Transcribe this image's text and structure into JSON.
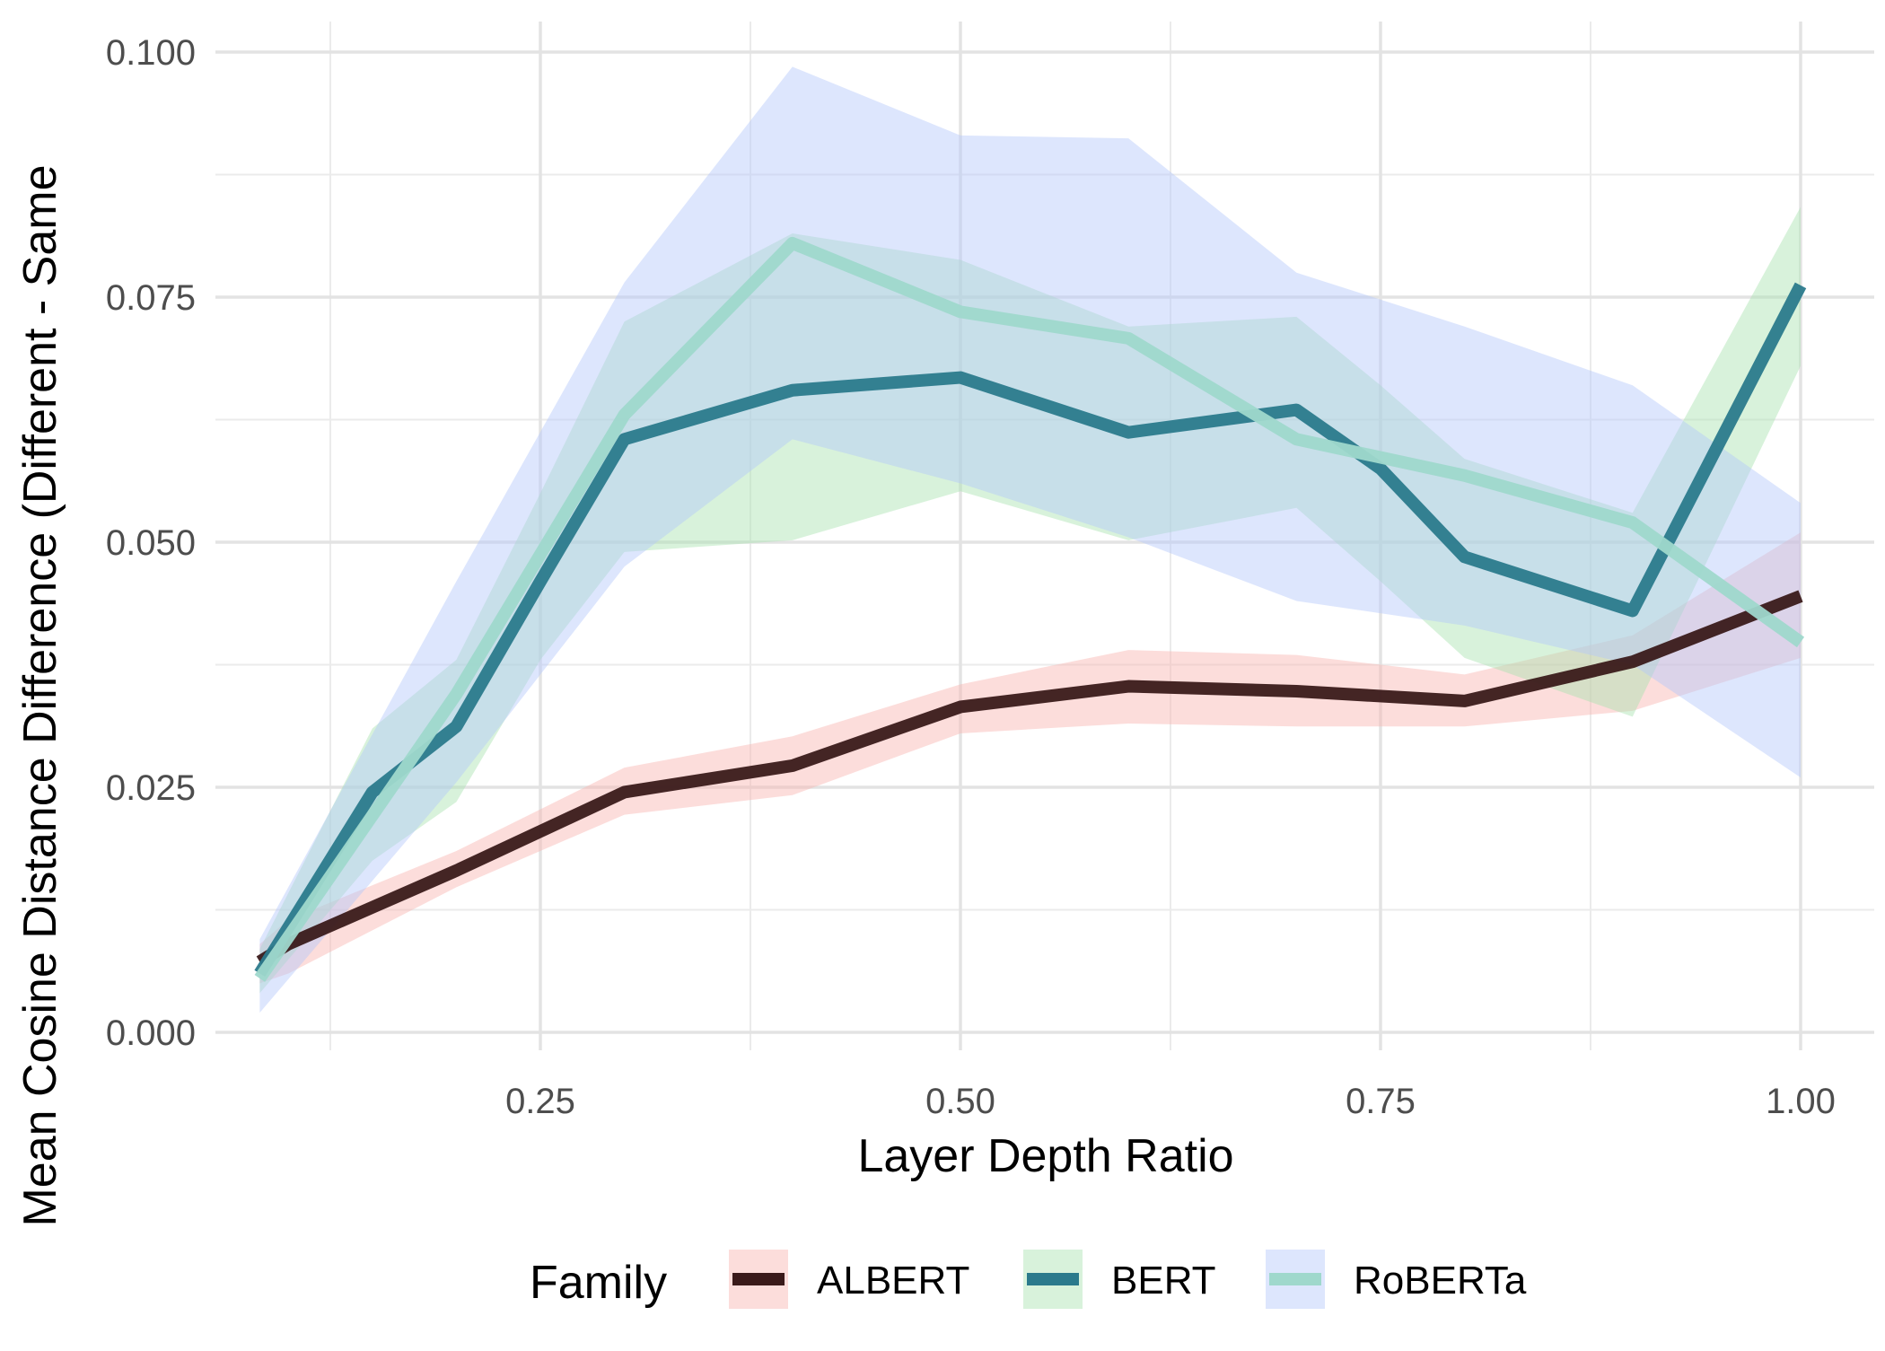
{
  "chart_data": {
    "type": "line",
    "xlabel": "Layer Depth Ratio",
    "ylabel": "Mean Cosine Distance Difference (Different - Same",
    "xlim": [
      0.03,
      1.04
    ],
    "ylim": [
      -0.003,
      0.103
    ],
    "xticks": [
      0.25,
      0.5,
      0.75,
      1.0
    ],
    "xtick_labels": [
      "0.25",
      "0.50",
      "0.75",
      "1.00"
    ],
    "yticks": [
      0.0,
      0.025,
      0.05,
      0.075,
      0.1
    ],
    "ytick_labels": [
      "0.000",
      "0.025",
      "0.050",
      "0.075",
      "0.100"
    ],
    "grid": true,
    "legend_position": "bottom",
    "legend_title": "Family",
    "series": [
      {
        "name": "ALBERT",
        "line_color": "#3a1a1a",
        "band_color": "#f8b4b0",
        "x": [
          0.083,
          0.1,
          0.2,
          0.3,
          0.4,
          0.5,
          0.6,
          0.7,
          0.8,
          0.9,
          1.0
        ],
        "y": [
          0.0072,
          0.009,
          0.0165,
          0.0245,
          0.0272,
          0.0332,
          0.0353,
          0.0348,
          0.0338,
          0.0378,
          0.0445
        ],
        "lower": [
          0.005,
          0.006,
          0.0148,
          0.0222,
          0.0242,
          0.0305,
          0.0315,
          0.0312,
          0.0312,
          0.0328,
          0.0382
        ],
        "upper": [
          0.009,
          0.0115,
          0.0185,
          0.027,
          0.0302,
          0.0355,
          0.039,
          0.0385,
          0.0365,
          0.0405,
          0.051
        ]
      },
      {
        "name": "BERT",
        "line_color": "#2b7a8c",
        "band_color": "#a9e3b0",
        "x": [
          0.083,
          0.15,
          0.2,
          0.25,
          0.3,
          0.4,
          0.5,
          0.6,
          0.7,
          0.75,
          0.8,
          0.9,
          1.0
        ],
        "y": [
          0.006,
          0.0245,
          0.0312,
          0.046,
          0.0605,
          0.0655,
          0.0668,
          0.0612,
          0.0635,
          0.0575,
          0.0485,
          0.043,
          0.0762
        ],
        "lower": [
          0.004,
          0.0175,
          0.0235,
          0.038,
          0.049,
          0.0502,
          0.0552,
          0.0502,
          0.0535,
          0.046,
          0.0382,
          0.0322,
          0.068
        ],
        "upper": [
          0.0085,
          0.031,
          0.038,
          0.055,
          0.0725,
          0.0815,
          0.0788,
          0.072,
          0.073,
          0.066,
          0.0585,
          0.053,
          0.0842
        ]
      },
      {
        "name": "RoBERTa",
        "line_color": "#9fd8cc",
        "band_color": "#b3c7fb",
        "x": [
          0.083,
          0.2,
          0.3,
          0.4,
          0.5,
          0.6,
          0.7,
          0.8,
          0.9,
          1.0
        ],
        "y": [
          0.0055,
          0.0345,
          0.063,
          0.0805,
          0.0735,
          0.0708,
          0.0605,
          0.0568,
          0.052,
          0.0398
        ],
        "lower": [
          0.002,
          0.0255,
          0.0475,
          0.0605,
          0.056,
          0.0505,
          0.044,
          0.0415,
          0.0375,
          0.026
        ],
        "upper": [
          0.0095,
          0.046,
          0.0765,
          0.0985,
          0.0915,
          0.0912,
          0.0775,
          0.072,
          0.066,
          0.054
        ]
      }
    ]
  }
}
